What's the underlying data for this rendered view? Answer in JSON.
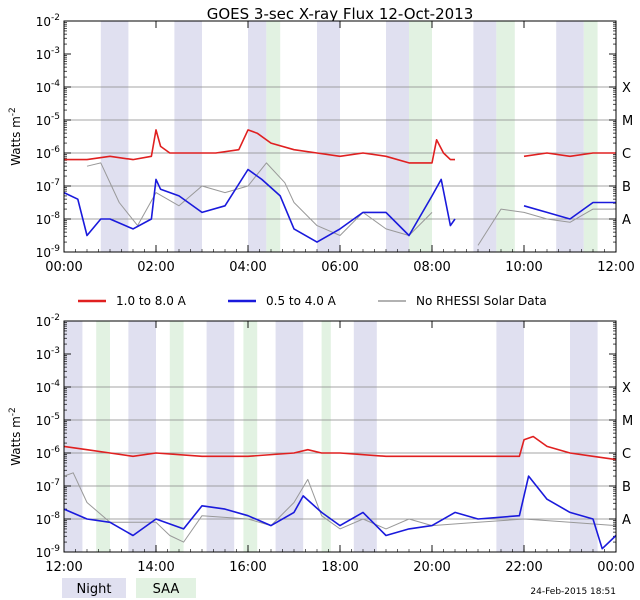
{
  "title": "GOES 3-sec X-ray Flux   12-Oct-2013",
  "footer_timestamp": "24-Feb-2015 18:51",
  "legend": {
    "series": [
      {
        "name": "1.0 to 8.0 A",
        "color": "#e02020"
      },
      {
        "name": "0.5 to 4.0 A",
        "color": "#1a1adc"
      },
      {
        "name": "No RHESSI Solar Data",
        "color": "#999999"
      }
    ],
    "bands": [
      {
        "name": "Night",
        "color": "#e0e0f0"
      },
      {
        "name": "SAA",
        "color": "#e2f2e2"
      }
    ]
  },
  "chart_data": [
    {
      "type": "line",
      "panel": "top",
      "ylabel": "Watts m-2",
      "y_scale": "log",
      "ylim_exp": [
        -9,
        -2
      ],
      "y_tick_labels": [
        "10-9",
        "10-8",
        "10-7",
        "10-6",
        "10-5",
        "10-4",
        "10-3",
        "10-2"
      ],
      "class_labels": [
        {
          "label": "A",
          "exp": -8
        },
        {
          "label": "B",
          "exp": -7
        },
        {
          "label": "C",
          "exp": -6
        },
        {
          "label": "M",
          "exp": -5
        },
        {
          "label": "X",
          "exp": -4
        }
      ],
      "xlim_hours": [
        0,
        12
      ],
      "x_ticks": [
        {
          "h": 0,
          "label": "00:00"
        },
        {
          "h": 2,
          "label": "02:00"
        },
        {
          "h": 4,
          "label": "04:00"
        },
        {
          "h": 6,
          "label": "06:00"
        },
        {
          "h": 8,
          "label": "08:00"
        },
        {
          "h": 10,
          "label": "10:00"
        },
        {
          "h": 12,
          "label": "12:00"
        }
      ],
      "night_bands_hours": [
        [
          0.8,
          1.4
        ],
        [
          2.4,
          3.0
        ],
        [
          4.0,
          4.4
        ],
        [
          5.5,
          6.0
        ],
        [
          7.0,
          7.5
        ],
        [
          8.9,
          9.4
        ],
        [
          10.7,
          11.3
        ]
      ],
      "saa_bands_hours": [
        [
          4.4,
          4.7
        ],
        [
          7.5,
          8.0
        ],
        [
          9.4,
          9.8
        ],
        [
          11.3,
          11.6
        ]
      ],
      "series": [
        {
          "name": "1.0 to 8.0 A",
          "points": [
            [
              0.0,
              -6.2
            ],
            [
              0.5,
              -6.2
            ],
            [
              1.0,
              -6.1
            ],
            [
              1.5,
              -6.2
            ],
            [
              1.9,
              -6.1
            ],
            [
              2.0,
              -5.3
            ],
            [
              2.1,
              -5.8
            ],
            [
              2.3,
              -6.0
            ],
            [
              2.8,
              -6.0
            ],
            [
              3.3,
              -6.0
            ],
            [
              3.8,
              -5.9
            ],
            [
              4.0,
              -5.3
            ],
            [
              4.2,
              -5.4
            ],
            [
              4.5,
              -5.7
            ],
            [
              5.0,
              -5.9
            ],
            [
              5.5,
              -6.0
            ],
            [
              6.0,
              -6.1
            ],
            [
              6.5,
              -6.0
            ],
            [
              7.0,
              -6.1
            ],
            [
              7.5,
              -6.3
            ],
            [
              8.0,
              -6.3
            ],
            [
              8.1,
              -5.6
            ],
            [
              8.25,
              -6.0
            ],
            [
              8.4,
              -6.2
            ],
            [
              8.5,
              -6.2
            ],
            [
              null,
              null
            ],
            [
              10.0,
              -6.1
            ],
            [
              10.5,
              -6.0
            ],
            [
              11.0,
              -6.1
            ],
            [
              11.5,
              -6.0
            ],
            [
              12.0,
              -6.0
            ]
          ]
        },
        {
          "name": "0.5 to 4.0 A",
          "points": [
            [
              0.0,
              -7.2
            ],
            [
              0.3,
              -7.4
            ],
            [
              0.5,
              -8.5
            ],
            [
              0.8,
              -8.0
            ],
            [
              1.0,
              -8.0
            ],
            [
              1.5,
              -8.3
            ],
            [
              1.9,
              -8.0
            ],
            [
              2.0,
              -6.8
            ],
            [
              2.1,
              -7.1
            ],
            [
              2.5,
              -7.3
            ],
            [
              3.0,
              -7.8
            ],
            [
              3.5,
              -7.6
            ],
            [
              4.0,
              -6.5
            ],
            [
              4.3,
              -6.8
            ],
            [
              4.7,
              -7.3
            ],
            [
              5.0,
              -8.3
            ],
            [
              5.5,
              -8.7
            ],
            [
              6.0,
              -8.3
            ],
            [
              6.5,
              -7.8
            ],
            [
              7.0,
              -7.8
            ],
            [
              7.5,
              -8.5
            ],
            [
              8.0,
              -7.3
            ],
            [
              8.2,
              -6.8
            ],
            [
              8.4,
              -8.2
            ],
            [
              8.5,
              -8.0
            ],
            [
              null,
              null
            ],
            [
              10.0,
              -7.6
            ],
            [
              10.5,
              -7.8
            ],
            [
              11.0,
              -8.0
            ],
            [
              11.5,
              -7.5
            ],
            [
              12.0,
              -7.5
            ]
          ]
        },
        {
          "name": "No RHESSI Solar Data",
          "points": [
            [
              0.5,
              -6.4
            ],
            [
              0.8,
              -6.3
            ],
            [
              1.2,
              -7.5
            ],
            [
              1.6,
              -8.2
            ],
            [
              2.0,
              -7.2
            ],
            [
              2.5,
              -7.6
            ],
            [
              3.0,
              -7.0
            ],
            [
              3.5,
              -7.2
            ],
            [
              4.0,
              -7.0
            ],
            [
              4.4,
              -6.3
            ],
            [
              4.8,
              -6.9
            ],
            [
              5.0,
              -7.5
            ],
            [
              5.5,
              -8.2
            ],
            [
              6.0,
              -8.5
            ],
            [
              6.5,
              -7.8
            ],
            [
              7.0,
              -8.3
            ],
            [
              7.5,
              -8.5
            ],
            [
              8.0,
              -7.8
            ],
            [
              null,
              null
            ],
            [
              9.0,
              -8.8
            ],
            [
              9.5,
              -7.7
            ],
            [
              10.0,
              -7.8
            ],
            [
              10.5,
              -8.0
            ],
            [
              11.0,
              -8.1
            ],
            [
              11.5,
              -7.7
            ],
            [
              12.0,
              -7.7
            ]
          ]
        }
      ]
    },
    {
      "type": "line",
      "panel": "bottom",
      "ylabel": "Watts m-2",
      "y_scale": "log",
      "ylim_exp": [
        -9,
        -2
      ],
      "y_tick_labels": [
        "10-9",
        "10-8",
        "10-7",
        "10-6",
        "10-5",
        "10-4",
        "10-3",
        "10-2"
      ],
      "class_labels": [
        {
          "label": "A",
          "exp": -8
        },
        {
          "label": "B",
          "exp": -7
        },
        {
          "label": "C",
          "exp": -6
        },
        {
          "label": "M",
          "exp": -5
        },
        {
          "label": "X",
          "exp": -4
        }
      ],
      "xlim_hours": [
        12,
        24
      ],
      "x_ticks": [
        {
          "h": 12,
          "label": "12:00"
        },
        {
          "h": 14,
          "label": "14:00"
        },
        {
          "h": 16,
          "label": "16:00"
        },
        {
          "h": 18,
          "label": "18:00"
        },
        {
          "h": 20,
          "label": "20:00"
        },
        {
          "h": 22,
          "label": "22:00"
        },
        {
          "h": 24,
          "label": "00:00"
        }
      ],
      "night_bands_hours": [
        [
          12.0,
          12.4
        ],
        [
          13.4,
          14.0
        ],
        [
          15.1,
          15.7
        ],
        [
          16.6,
          17.2
        ],
        [
          18.3,
          18.8
        ],
        [
          21.4,
          22.0
        ],
        [
          23.0,
          23.6
        ]
      ],
      "saa_bands_hours": [
        [
          12.7,
          13.0
        ],
        [
          14.3,
          14.6
        ],
        [
          15.9,
          16.2
        ],
        [
          17.6,
          17.8
        ]
      ],
      "series": [
        {
          "name": "1.0 to 8.0 A",
          "points": [
            [
              12.0,
              -5.8
            ],
            [
              12.5,
              -5.9
            ],
            [
              13.0,
              -6.0
            ],
            [
              13.5,
              -6.1
            ],
            [
              14.0,
              -6.0
            ],
            [
              15.0,
              -6.1
            ],
            [
              16.0,
              -6.1
            ],
            [
              17.0,
              -6.0
            ],
            [
              17.3,
              -5.9
            ],
            [
              17.6,
              -6.0
            ],
            [
              18.0,
              -6.0
            ],
            [
              19.0,
              -6.1
            ],
            [
              20.0,
              -6.1
            ],
            [
              21.0,
              -6.1
            ],
            [
              21.9,
              -6.1
            ],
            [
              22.0,
              -5.6
            ],
            [
              22.2,
              -5.5
            ],
            [
              22.5,
              -5.8
            ],
            [
              23.0,
              -6.0
            ],
            [
              23.5,
              -6.1
            ],
            [
              24.0,
              -6.2
            ]
          ]
        },
        {
          "name": "0.5 to 4.0 A",
          "points": [
            [
              12.0,
              -7.7
            ],
            [
              12.5,
              -8.0
            ],
            [
              13.0,
              -8.1
            ],
            [
              13.5,
              -8.5
            ],
            [
              14.0,
              -8.0
            ],
            [
              14.6,
              -8.3
            ],
            [
              15.0,
              -7.6
            ],
            [
              15.5,
              -7.7
            ],
            [
              16.0,
              -7.9
            ],
            [
              16.5,
              -8.2
            ],
            [
              17.0,
              -7.8
            ],
            [
              17.2,
              -7.3
            ],
            [
              17.6,
              -7.8
            ],
            [
              18.0,
              -8.2
            ],
            [
              18.5,
              -7.8
            ],
            [
              19.0,
              -8.5
            ],
            [
              19.5,
              -8.3
            ],
            [
              20.0,
              -8.2
            ],
            [
              20.5,
              -7.8
            ],
            [
              21.0,
              -8.0
            ],
            [
              21.9,
              -7.9
            ],
            [
              22.1,
              -6.7
            ],
            [
              22.5,
              -7.4
            ],
            [
              23.0,
              -7.8
            ],
            [
              23.5,
              -8.0
            ],
            [
              23.7,
              -8.9
            ],
            [
              24.0,
              -8.5
            ]
          ]
        },
        {
          "name": "No RHESSI Solar Data",
          "points": [
            [
              12.0,
              -6.7
            ],
            [
              12.2,
              -6.6
            ],
            [
              12.5,
              -7.5
            ],
            [
              13.0,
              -8.1
            ],
            [
              14.0,
              -8.1
            ],
            [
              14.3,
              -8.5
            ],
            [
              14.6,
              -8.7
            ],
            [
              15.0,
              -7.9
            ],
            [
              16.0,
              -8.0
            ],
            [
              16.5,
              -8.2
            ],
            [
              17.0,
              -7.5
            ],
            [
              17.3,
              -6.8
            ],
            [
              17.6,
              -7.9
            ],
            [
              18.0,
              -8.3
            ],
            [
              18.5,
              -8.0
            ],
            [
              19.0,
              -8.3
            ],
            [
              19.5,
              -8.0
            ],
            [
              20.0,
              -8.2
            ],
            [
              21.0,
              -8.1
            ],
            [
              22.0,
              -8.0
            ],
            [
              23.0,
              -8.1
            ],
            [
              24.0,
              -8.2
            ]
          ]
        }
      ]
    }
  ]
}
